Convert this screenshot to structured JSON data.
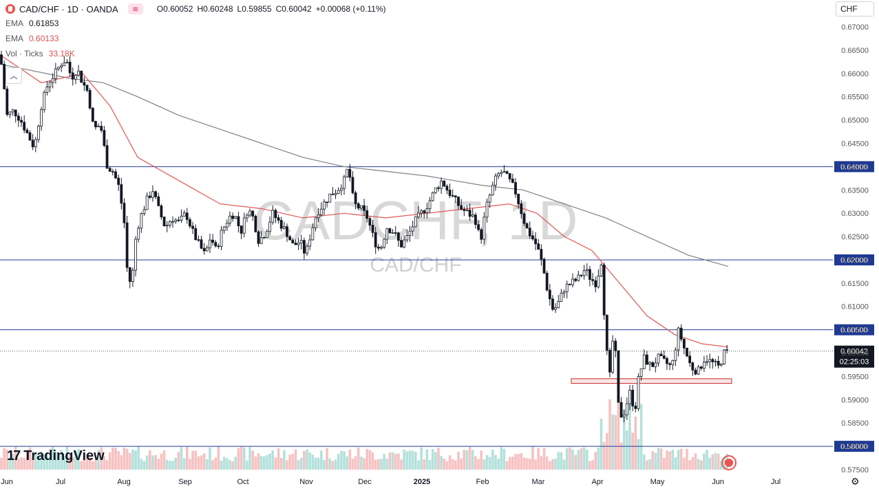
{
  "legend": {
    "symbol": "CAD/CHF · 1D · OANDA",
    "open_label": "O",
    "open": "0.60052",
    "high_label": "H",
    "high": "0.60248",
    "low_label": "L",
    "low": "0.59855",
    "close_label": "C",
    "close": "0.60042",
    "change": "+0.00068 (+0.11%)",
    "ema1_label": "EMA",
    "ema1_value": "0.61853",
    "ema2_label": "EMA",
    "ema2_value": "0.60133",
    "vol_label": "Vol · Ticks",
    "vol_value": "33.18K"
  },
  "currency_button": "CHF",
  "watermark": {
    "big": "CADCHF, 1D",
    "small": "CAD/CHF"
  },
  "brand": "TradingView",
  "last_price": {
    "value": "0.60042",
    "countdown": "02:25:03"
  },
  "colors": {
    "up": "#131722",
    "down": "#131722",
    "ema_fast": "#e05555",
    "ema_slow": "#808080",
    "hline": "#1f3a93",
    "label_bg": "#1f3a93",
    "vol_up": "#a7dcd6",
    "vol_down": "#f5b7b7",
    "zone": "#f5c0c0"
  },
  "icons": {
    "collapse": "chevron-up-icon",
    "settings": "gear-icon",
    "flag": "canada-flag-icon"
  },
  "chart_data": {
    "type": "candlestick",
    "price_axis": {
      "min": 0.575,
      "max": 0.67,
      "ticks": [
        "0.67000",
        "0.66500",
        "0.66000",
        "0.65500",
        "0.65000",
        "0.64500",
        "0.64000",
        "0.63500",
        "0.63000",
        "0.62500",
        "0.62000",
        "0.61500",
        "0.61000",
        "0.60500",
        "0.60000",
        "0.59500",
        "0.59000",
        "0.58500",
        "0.58000",
        "0.57500"
      ]
    },
    "time_axis": [
      "Jun",
      "Jul",
      "Aug",
      "Sep",
      "Oct",
      "Nov",
      "Dec",
      "2025",
      "Feb",
      "Mar",
      "Apr",
      "May",
      "Jun",
      "Jul"
    ],
    "horizontal_levels": [
      "0.64000",
      "0.62000",
      "0.60500",
      "0.58000"
    ],
    "support_zone": [
      0.5935,
      0.5945
    ],
    "close_path": [
      [
        0,
        0.664
      ],
      [
        4,
        0.66
      ],
      [
        10,
        0.651
      ],
      [
        20,
        0.652
      ],
      [
        30,
        0.65
      ],
      [
        40,
        0.647
      ],
      [
        50,
        0.644
      ],
      [
        60,
        0.653
      ],
      [
        70,
        0.658
      ],
      [
        80,
        0.66
      ],
      [
        88,
        0.662
      ],
      [
        96,
        0.663
      ],
      [
        104,
        0.659
      ],
      [
        112,
        0.661
      ],
      [
        120,
        0.658
      ],
      [
        128,
        0.656
      ],
      [
        136,
        0.648
      ],
      [
        146,
        0.649
      ],
      [
        156,
        0.64
      ],
      [
        164,
        0.639
      ],
      [
        172,
        0.636
      ],
      [
        180,
        0.629
      ],
      [
        186,
        0.615
      ],
      [
        192,
        0.616
      ],
      [
        198,
        0.626
      ],
      [
        206,
        0.63
      ],
      [
        214,
        0.633
      ],
      [
        222,
        0.635
      ],
      [
        230,
        0.631
      ],
      [
        240,
        0.627
      ],
      [
        250,
        0.629
      ],
      [
        260,
        0.628
      ],
      [
        270,
        0.63
      ],
      [
        280,
        0.626
      ],
      [
        290,
        0.623
      ],
      [
        298,
        0.621
      ],
      [
        306,
        0.625
      ],
      [
        314,
        0.622
      ],
      [
        322,
        0.626
      ],
      [
        332,
        0.629
      ],
      [
        340,
        0.63
      ],
      [
        350,
        0.626
      ],
      [
        360,
        0.631
      ],
      [
        368,
        0.629
      ],
      [
        376,
        0.624
      ],
      [
        386,
        0.626
      ],
      [
        396,
        0.63
      ],
      [
        406,
        0.628
      ],
      [
        416,
        0.626
      ],
      [
        426,
        0.623
      ],
      [
        436,
        0.624
      ],
      [
        444,
        0.621
      ],
      [
        452,
        0.626
      ],
      [
        460,
        0.63
      ],
      [
        470,
        0.632
      ],
      [
        480,
        0.634
      ],
      [
        490,
        0.635
      ],
      [
        500,
        0.637
      ],
      [
        506,
        0.64
      ],
      [
        514,
        0.632
      ],
      [
        524,
        0.631
      ],
      [
        534,
        0.629
      ],
      [
        544,
        0.624
      ],
      [
        552,
        0.622
      ],
      [
        562,
        0.627
      ],
      [
        572,
        0.626
      ],
      [
        582,
        0.623
      ],
      [
        592,
        0.625
      ],
      [
        602,
        0.628
      ],
      [
        612,
        0.63
      ],
      [
        622,
        0.632
      ],
      [
        632,
        0.635
      ],
      [
        642,
        0.637
      ],
      [
        650,
        0.635
      ],
      [
        660,
        0.633
      ],
      [
        670,
        0.631
      ],
      [
        680,
        0.63
      ],
      [
        690,
        0.629
      ],
      [
        698,
        0.624
      ],
      [
        706,
        0.631
      ],
      [
        714,
        0.635
      ],
      [
        722,
        0.638
      ],
      [
        730,
        0.639
      ],
      [
        740,
        0.637
      ],
      [
        748,
        0.635
      ],
      [
        756,
        0.631
      ],
      [
        764,
        0.627
      ],
      [
        772,
        0.625
      ],
      [
        780,
        0.623
      ],
      [
        788,
        0.619
      ],
      [
        796,
        0.613
      ],
      [
        804,
        0.609
      ],
      [
        812,
        0.611
      ],
      [
        820,
        0.614
      ],
      [
        830,
        0.615
      ],
      [
        840,
        0.616
      ],
      [
        850,
        0.618
      ],
      [
        858,
        0.616
      ],
      [
        866,
        0.615
      ],
      [
        874,
        0.62
      ],
      [
        880,
        0.602
      ],
      [
        886,
        0.595
      ],
      [
        892,
        0.606
      ],
      [
        898,
        0.589
      ],
      [
        904,
        0.586
      ],
      [
        910,
        0.589
      ],
      [
        916,
        0.592
      ],
      [
        922,
        0.587
      ],
      [
        928,
        0.595
      ],
      [
        936,
        0.599
      ],
      [
        946,
        0.597
      ],
      [
        956,
        0.599
      ],
      [
        966,
        0.598
      ],
      [
        976,
        0.597
      ],
      [
        986,
        0.605
      ],
      [
        994,
        0.601
      ],
      [
        1004,
        0.597
      ],
      [
        1014,
        0.596
      ],
      [
        1024,
        0.599
      ],
      [
        1034,
        0.598
      ],
      [
        1044,
        0.597
      ],
      [
        1052,
        0.6
      ],
      [
        1058,
        0.6004
      ]
    ],
    "ema_fast": [
      [
        0,
        0.664
      ],
      [
        60,
        0.658
      ],
      [
        120,
        0.66
      ],
      [
        160,
        0.653
      ],
      [
        200,
        0.642
      ],
      [
        260,
        0.637
      ],
      [
        320,
        0.632
      ],
      [
        380,
        0.631
      ],
      [
        440,
        0.629
      ],
      [
        500,
        0.63
      ],
      [
        560,
        0.629
      ],
      [
        620,
        0.63
      ],
      [
        680,
        0.631
      ],
      [
        740,
        0.632
      ],
      [
        780,
        0.63
      ],
      [
        820,
        0.625
      ],
      [
        860,
        0.622
      ],
      [
        900,
        0.615
      ],
      [
        940,
        0.608
      ],
      [
        980,
        0.604
      ],
      [
        1020,
        0.602
      ],
      [
        1058,
        0.6013
      ]
    ],
    "ema_slow": [
      [
        0,
        0.662
      ],
      [
        100,
        0.659
      ],
      [
        150,
        0.658
      ],
      [
        200,
        0.655
      ],
      [
        260,
        0.651
      ],
      [
        320,
        0.648
      ],
      [
        380,
        0.645
      ],
      [
        440,
        0.642
      ],
      [
        500,
        0.64
      ],
      [
        560,
        0.639
      ],
      [
        620,
        0.638
      ],
      [
        700,
        0.636
      ],
      [
        760,
        0.635
      ],
      [
        820,
        0.632
      ],
      [
        880,
        0.629
      ],
      [
        940,
        0.625
      ],
      [
        1000,
        0.621
      ],
      [
        1058,
        0.6186
      ]
    ]
  }
}
